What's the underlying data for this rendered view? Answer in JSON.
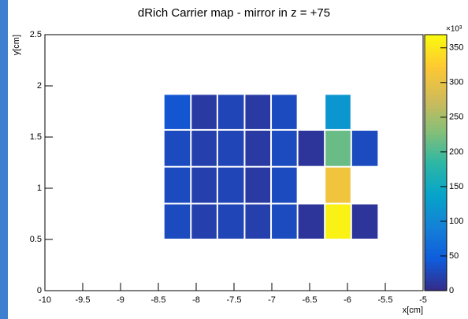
{
  "chart_data": {
    "type": "heatmap",
    "title": "dRich Carrier map - mirror in z = +75",
    "x_label": "x[cm]",
    "y_label": "y[cm]",
    "z_exponent_label": "×10³",
    "xbins": [
      -8.43,
      -8.07,
      -7.72,
      -7.36,
      -7.01,
      -6.66,
      -6.3,
      -5.95,
      -5.59
    ],
    "ybins": [
      0.5,
      0.85,
      1.21,
      1.57,
      1.92
    ],
    "values": [
      [
        30,
        20,
        25,
        20,
        30,
        10,
        360,
        10
      ],
      [
        30,
        20,
        25,
        15,
        30,
        null,
        310,
        null
      ],
      [
        30,
        20,
        25,
        15,
        30,
        10,
        215,
        30
      ],
      [
        40,
        15,
        25,
        15,
        30,
        null,
        120,
        null
      ]
    ],
    "xlim": [
      -10,
      -5
    ],
    "xticks": [
      -10,
      -9.5,
      -9,
      -8.5,
      -8,
      -7.5,
      -7,
      -6.5,
      -6,
      -5.5,
      -5
    ],
    "ylim": [
      0,
      2.5
    ],
    "yticks": [
      0,
      0.5,
      1,
      1.5,
      2,
      2.5
    ],
    "zlim": [
      0,
      369
    ],
    "zticks": [
      0,
      50,
      100,
      150,
      200,
      250,
      300,
      350
    ],
    "colorscale": [
      "#352a87",
      "#0f5cdd",
      "#1481d6",
      "#06a4ca",
      "#2eb7a4",
      "#87bf77",
      "#d1bb59",
      "#fec832",
      "#f9fb0e"
    ]
  }
}
